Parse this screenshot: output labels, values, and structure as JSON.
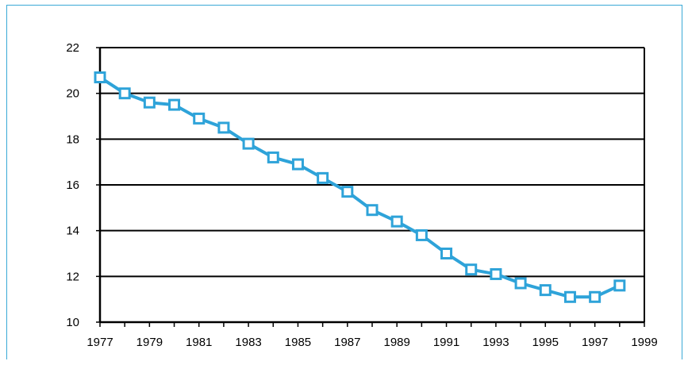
{
  "chart_data": {
    "type": "line",
    "title": "",
    "xlabel": "",
    "ylabel": "",
    "xlim": [
      1977,
      1999
    ],
    "ylim": [
      10,
      22
    ],
    "x_ticks": [
      "1977",
      "1979",
      "1981",
      "1983",
      "1985",
      "1987",
      "1989",
      "1991",
      "1993",
      "1995",
      "1997",
      "1999"
    ],
    "y_ticks": [
      "10",
      "12",
      "14",
      "16",
      "18",
      "20",
      "22"
    ],
    "grid": "horizontal",
    "legend": "none",
    "colors": {
      "line": "#2ea3d9",
      "grid": "#000000",
      "frame": "#3aa9d6"
    },
    "series": [
      {
        "x": [
          1977,
          1978,
          1979,
          1980,
          1981,
          1982,
          1983,
          1984,
          1985,
          1986,
          1987,
          1988,
          1989,
          1990,
          1991,
          1992,
          1993,
          1994,
          1995,
          1996,
          1997,
          1998
        ],
        "y": [
          20.7,
          20.0,
          19.6,
          19.5,
          18.9,
          18.5,
          17.8,
          17.2,
          16.9,
          16.3,
          15.7,
          14.9,
          14.4,
          13.8,
          13.0,
          12.3,
          12.1,
          11.7,
          11.4,
          11.1,
          11.1,
          11.6
        ]
      }
    ]
  }
}
